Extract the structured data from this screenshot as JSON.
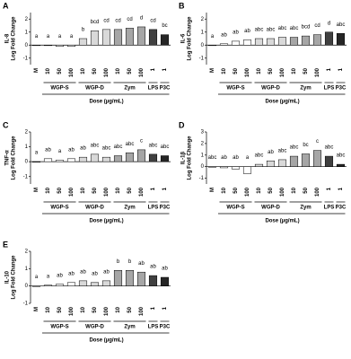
{
  "chart_data": [
    {
      "type": "bar",
      "panel": "A",
      "ylabel_lines": [
        "IL-8",
        "Log Fold Change"
      ],
      "xlabel": "Dose (µg/mL)",
      "categories": [
        "M",
        "10",
        "50",
        "100",
        "10",
        "50",
        "100",
        "10",
        "50",
        "100",
        "1",
        "1"
      ],
      "category_groups": [
        null,
        "WGP-S",
        "WGP-S",
        "WGP-S",
        "WGP-D",
        "WGP-D",
        "WGP-D",
        "Zym",
        "Zym",
        "Zym",
        "LPS",
        "P3C"
      ],
      "values": [
        0,
        0,
        -0.1,
        -0.1,
        0.5,
        1.1,
        1.2,
        1.2,
        1.3,
        1.4,
        1.2,
        0.8
      ],
      "value_labels": [
        "a",
        "a",
        "a",
        "a",
        "b",
        "bcd",
        "cd",
        "cd",
        "cd",
        "d",
        "cd",
        "bc"
      ],
      "colors": [
        "#ffffff",
        "#ffffff",
        "#ffffff",
        "#ffffff",
        "#d9d9d9",
        "#d9d9d9",
        "#d9d9d9",
        "#a6a6a6",
        "#a6a6a6",
        "#a6a6a6",
        "#404040",
        "#262626"
      ],
      "ylim": [
        -1.5,
        2.5
      ],
      "yticks": [
        -1,
        0,
        1,
        2
      ]
    },
    {
      "type": "bar",
      "panel": "B",
      "ylabel_lines": [
        "IL-6",
        "Log Fold Change"
      ],
      "xlabel": "Dose (µg/mL)",
      "categories": [
        "M",
        "10",
        "50",
        "100",
        "10",
        "50",
        "100",
        "10",
        "50",
        "100",
        "1",
        "1"
      ],
      "category_groups": [
        null,
        "WGP-S",
        "WGP-S",
        "WGP-S",
        "WGP-D",
        "WGP-D",
        "WGP-D",
        "Zym",
        "Zym",
        "Zym",
        "LPS",
        "P3C"
      ],
      "values": [
        0,
        0.1,
        0.3,
        0.4,
        0.5,
        0.5,
        0.6,
        0.6,
        0.7,
        0.8,
        1.0,
        0.9
      ],
      "value_labels": [
        "a",
        "ab",
        "ab",
        "ab",
        "abc",
        "abc",
        "abc",
        "abc",
        "bcd",
        "cd",
        "d",
        "abc"
      ],
      "colors": [
        "#ffffff",
        "#ffffff",
        "#ffffff",
        "#ffffff",
        "#d9d9d9",
        "#d9d9d9",
        "#d9d9d9",
        "#a6a6a6",
        "#a6a6a6",
        "#a6a6a6",
        "#404040",
        "#262626"
      ],
      "ylim": [
        -1.5,
        2.5
      ],
      "yticks": [
        -1,
        0,
        1,
        2
      ]
    },
    {
      "type": "bar",
      "panel": "C",
      "ylabel_lines": [
        "TNF-α",
        "Log Fold Change"
      ],
      "xlabel": "Dose (µg/mL)",
      "categories": [
        "M",
        "10",
        "50",
        "100",
        "10",
        "50",
        "100",
        "10",
        "50",
        "100",
        "1",
        "1"
      ],
      "category_groups": [
        null,
        "WGP-S",
        "WGP-S",
        "WGP-S",
        "WGP-D",
        "WGP-D",
        "WGP-D",
        "Zym",
        "Zym",
        "Zym",
        "LPS",
        "P3C"
      ],
      "values": [
        0,
        0.2,
        0.1,
        0.2,
        0.3,
        0.5,
        0.3,
        0.4,
        0.6,
        0.8,
        0.5,
        0.4
      ],
      "value_labels": [
        "a",
        "ab",
        "a",
        "ab",
        "ab",
        "abc",
        "abc",
        "abc",
        "abc",
        "c",
        "abc",
        "abc"
      ],
      "colors": [
        "#ffffff",
        "#ffffff",
        "#ffffff",
        "#ffffff",
        "#d9d9d9",
        "#d9d9d9",
        "#d9d9d9",
        "#a6a6a6",
        "#a6a6a6",
        "#a6a6a6",
        "#404040",
        "#262626"
      ],
      "ylim": [
        -1.5,
        2
      ],
      "yticks": [
        -1,
        0,
        1,
        2
      ]
    },
    {
      "type": "bar",
      "panel": "D",
      "ylabel_lines": [
        "IL-1β",
        "Log Fold Change"
      ],
      "xlabel": "Dose (µg/mL)",
      "categories": [
        "M",
        "10",
        "50",
        "100",
        "10",
        "50",
        "100",
        "10",
        "50",
        "100",
        "1",
        "1"
      ],
      "category_groups": [
        null,
        "WGP-S",
        "WGP-S",
        "WGP-S",
        "WGP-D",
        "WGP-D",
        "WGP-D",
        "Zym",
        "Zym",
        "Zym",
        "LPS",
        "P3C"
      ],
      "values": [
        0,
        -0.1,
        -0.2,
        -0.6,
        0.2,
        0.5,
        0.6,
        0.9,
        1.1,
        1.4,
        0.9,
        0.2
      ],
      "value_labels": [
        "abc",
        "ab",
        "ab",
        "a",
        "abc",
        "ab",
        "abc",
        "abc",
        "bc",
        "c",
        "abc",
        "abc"
      ],
      "colors": [
        "#ffffff",
        "#ffffff",
        "#ffffff",
        "#ffffff",
        "#d9d9d9",
        "#d9d9d9",
        "#d9d9d9",
        "#a6a6a6",
        "#a6a6a6",
        "#a6a6a6",
        "#404040",
        "#262626"
      ],
      "ylim": [
        -1.5,
        3
      ],
      "yticks": [
        -1,
        0,
        1,
        2,
        3
      ]
    },
    {
      "type": "bar",
      "panel": "E",
      "ylabel_lines": [
        "IL-10",
        "Log Fold Change"
      ],
      "xlabel": "Dose (µg/mL)",
      "categories": [
        "M",
        "10",
        "50",
        "100",
        "10",
        "50",
        "100",
        "10",
        "50",
        "100",
        "1",
        "1"
      ],
      "category_groups": [
        null,
        "WGP-S",
        "WGP-S",
        "WGP-S",
        "WGP-D",
        "WGP-D",
        "WGP-D",
        "Zym",
        "Zym",
        "Zym",
        "LPS",
        "P3C"
      ],
      "values": [
        0,
        0.05,
        0.1,
        0.2,
        0.3,
        0.2,
        0.3,
        0.9,
        0.9,
        0.8,
        0.6,
        0.5
      ],
      "value_labels": [
        "a",
        "a",
        "ab",
        "ab",
        "ab",
        "ab",
        "ab",
        "b",
        "b",
        "ab",
        "ab",
        "ab"
      ],
      "colors": [
        "#ffffff",
        "#ffffff",
        "#ffffff",
        "#ffffff",
        "#d9d9d9",
        "#d9d9d9",
        "#d9d9d9",
        "#a6a6a6",
        "#a6a6a6",
        "#a6a6a6",
        "#404040",
        "#262626"
      ],
      "ylim": [
        -1,
        2
      ],
      "yticks": [
        -1,
        0,
        1,
        2
      ]
    }
  ]
}
